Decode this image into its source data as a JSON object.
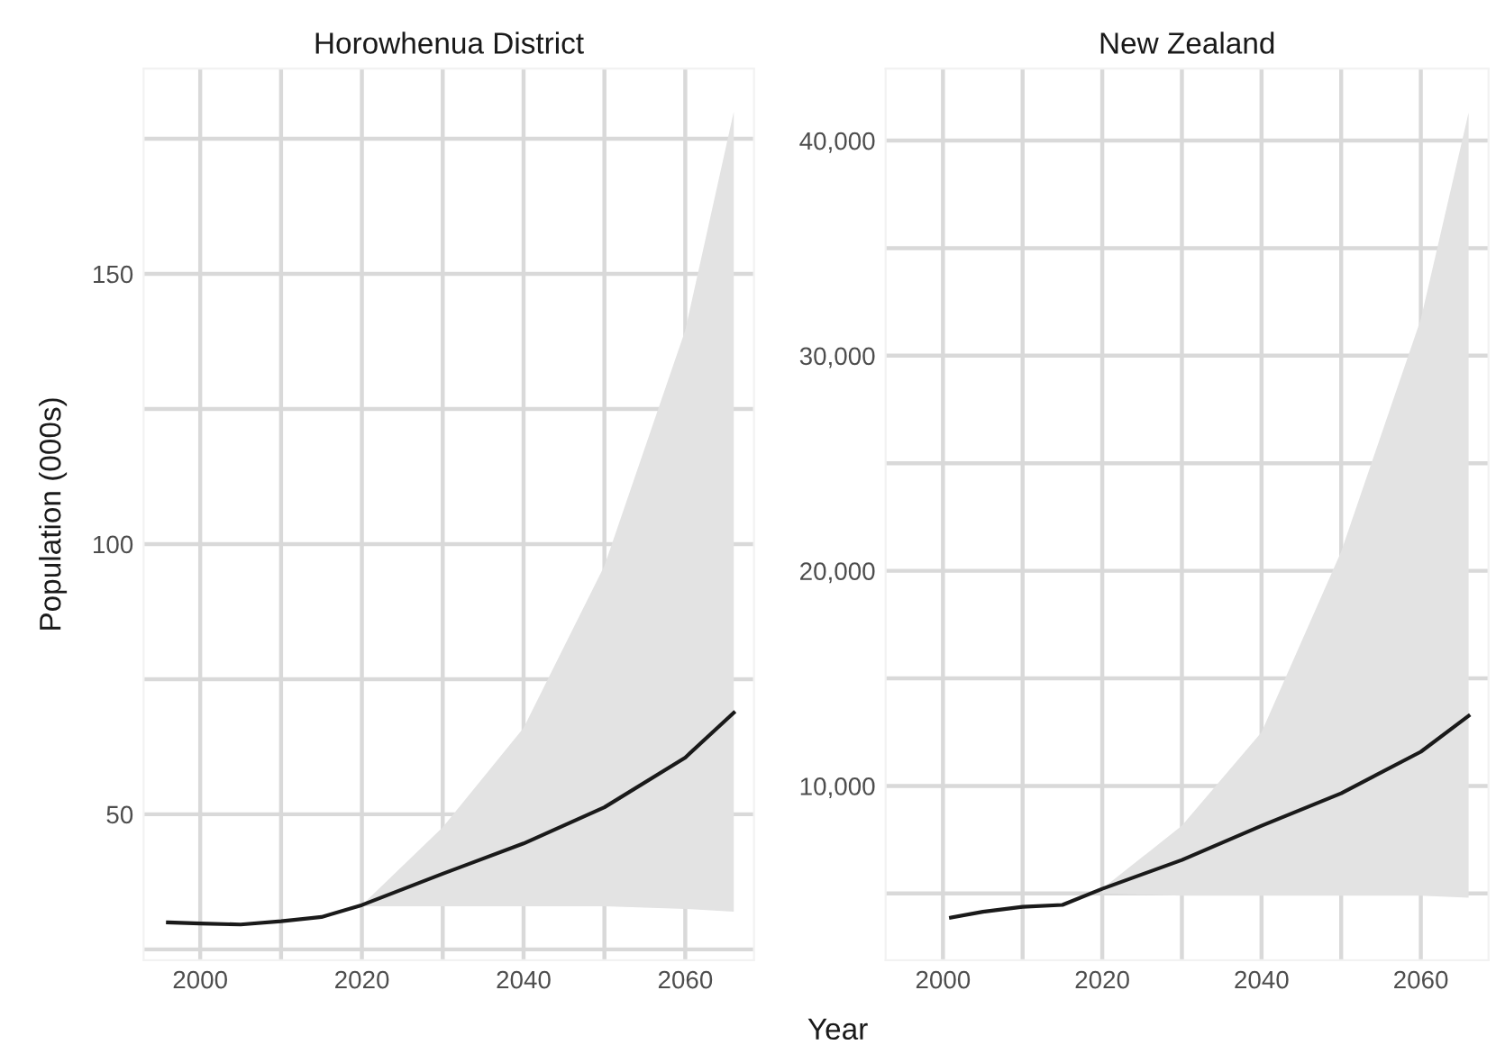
{
  "chart_data": [
    {
      "type": "line",
      "title": "Horowhenua District",
      "ylabel": "Population (000s)",
      "x": [
        1996,
        2000,
        2005,
        2010,
        2015,
        2020,
        2030,
        2040,
        2050,
        2060,
        2066
      ],
      "series": [
        {
          "color": "#1a1a1a",
          "values": [
            30,
            29.8,
            29.6,
            30.2,
            31,
            33.2,
            39,
            44.6,
            51.3,
            60.5,
            68.8
          ],
          "lower": [
            null,
            null,
            null,
            null,
            null,
            33,
            33,
            33,
            33,
            32.5,
            32
          ],
          "upper": [
            null,
            null,
            null,
            null,
            null,
            33.2,
            47.6,
            66,
            96,
            139.6,
            180
          ]
        }
      ],
      "xlim": [
        1993,
        2068.5
      ],
      "ylim": [
        23,
        188
      ],
      "xticks": [
        2000,
        {
          "value": 2010,
          "label": null
        },
        2020,
        {
          "value": 2030,
          "label": null
        },
        2040,
        {
          "value": 2050,
          "label": null
        },
        2060
      ],
      "yticks": [
        {
          "value": 25,
          "label": null
        },
        50,
        {
          "value": 75,
          "label": null
        },
        100,
        {
          "value": 125,
          "label": null
        },
        150,
        {
          "value": 175,
          "label": null
        }
      ],
      "grid": true,
      "line_style": "solid"
    },
    {
      "type": "line",
      "title": "New Zealand",
      "xlabel": "Year",
      "x": [
        2001,
        2005,
        2010,
        2015,
        2020,
        2030,
        2040,
        2050,
        2060,
        2066
      ],
      "series": [
        {
          "color": "#1a1a1a",
          "values": [
            3880,
            4150,
            4380,
            4470,
            5220,
            6560,
            8150,
            9660,
            11590,
            13260
          ],
          "lower": [
            null,
            null,
            null,
            null,
            5000,
            4900,
            4900,
            4900,
            4900,
            4800
          ],
          "upper": [
            null,
            null,
            null,
            null,
            5220,
            8150,
            12500,
            20900,
            31700,
            41300
          ]
        }
      ],
      "xlim": [
        1992.8,
        2068.5
      ],
      "ylim": [
        1900,
        43350
      ],
      "xticks": [
        2000,
        {
          "value": 2010,
          "label": null
        },
        2020,
        {
          "value": 2030,
          "label": null
        },
        2040,
        {
          "value": 2050,
          "label": null
        },
        2060
      ],
      "yticks": [
        {
          "value": 5000,
          "label": null
        },
        {
          "value": 10000,
          "label": "10,000"
        },
        {
          "value": 15000,
          "label": null
        },
        {
          "value": 20000,
          "label": "20,000"
        },
        {
          "value": 25000,
          "label": null
        },
        {
          "value": 30000,
          "label": "30,000"
        },
        {
          "value": 35000,
          "label": null
        },
        {
          "value": 40000,
          "label": "40,000"
        }
      ],
      "grid": true,
      "line_style": "solid"
    }
  ]
}
